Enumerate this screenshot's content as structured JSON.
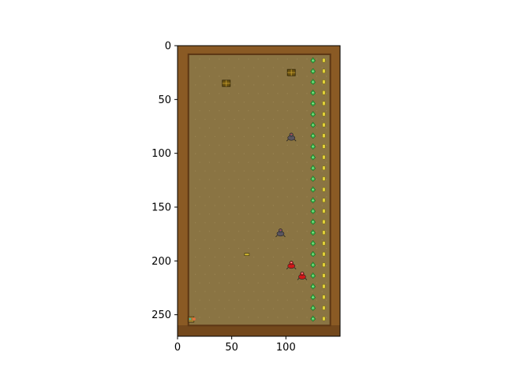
{
  "plot": {
    "xlim": [
      0,
      150
    ],
    "ylim": [
      270,
      0
    ],
    "x_ticks": [
      {
        "value": 0,
        "label": "0"
      },
      {
        "value": 50,
        "label": "50"
      },
      {
        "value": 100,
        "label": "100"
      }
    ],
    "y_ticks": [
      {
        "value": 0,
        "label": "0"
      },
      {
        "value": 50,
        "label": "50"
      },
      {
        "value": 100,
        "label": "100"
      },
      {
        "value": 150,
        "label": "150"
      },
      {
        "value": 200,
        "label": "200"
      },
      {
        "value": 250,
        "label": "250"
      }
    ]
  },
  "colors": {
    "wall": "#8a5a24",
    "wall_dark": "#5c3614",
    "floor": "#8a7443",
    "floor_dot": "#9a8452",
    "green_plant": "#3fbf4f",
    "yellow_plant": "#e3d23a",
    "enemy_gray": "#5a5560",
    "enemy_red": "#d01818",
    "crate": "#6b5210",
    "player": "#e07040"
  },
  "game": {
    "map_bounds": {
      "x": [
        0,
        150
      ],
      "y": [
        0,
        270
      ]
    },
    "crates": [
      {
        "id": "crate-1",
        "icon": "crate-icon",
        "x": 45,
        "y": 35
      },
      {
        "id": "crate-2",
        "icon": "crate-icon",
        "x": 105,
        "y": 25
      }
    ],
    "enemies": [
      {
        "id": "enemy-gray-1",
        "icon": "gray-creature-icon",
        "color": "gray",
        "x": 105,
        "y": 85
      },
      {
        "id": "enemy-gray-2",
        "icon": "gray-creature-icon",
        "color": "gray",
        "x": 95,
        "y": 174
      },
      {
        "id": "enemy-red-1",
        "icon": "red-creature-icon",
        "color": "red",
        "x": 105,
        "y": 204
      },
      {
        "id": "enemy-red-2",
        "icon": "red-creature-icon",
        "color": "red",
        "x": 115,
        "y": 214
      }
    ],
    "items": [
      {
        "id": "small-item-1",
        "icon": "key-icon",
        "x": 64,
        "y": 194
      }
    ],
    "player": {
      "icon": "player-icon",
      "x": 13,
      "y": 254
    },
    "green_plant_column_x": 125,
    "yellow_plant_column_x": 135,
    "plant_rows_y": [
      14,
      24,
      34,
      44,
      54,
      64,
      74,
      84,
      94,
      104,
      114,
      124,
      134,
      144,
      154,
      164,
      174,
      184,
      194,
      204,
      214,
      224,
      234,
      244,
      254
    ]
  }
}
